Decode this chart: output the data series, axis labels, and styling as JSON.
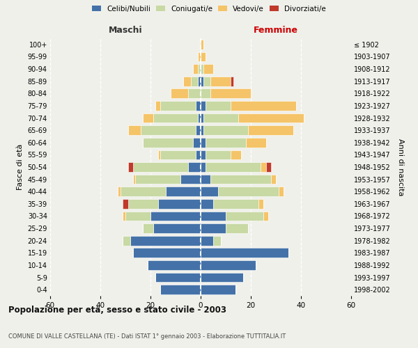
{
  "age_groups": [
    "0-4",
    "5-9",
    "10-14",
    "15-19",
    "20-24",
    "25-29",
    "30-34",
    "35-39",
    "40-44",
    "45-49",
    "50-54",
    "55-59",
    "60-64",
    "65-69",
    "70-74",
    "75-79",
    "80-84",
    "85-89",
    "90-94",
    "95-99",
    "100+"
  ],
  "birth_years": [
    "1998-2002",
    "1993-1997",
    "1988-1992",
    "1983-1987",
    "1978-1982",
    "1973-1977",
    "1968-1972",
    "1963-1967",
    "1958-1962",
    "1953-1957",
    "1948-1952",
    "1943-1947",
    "1938-1942",
    "1933-1937",
    "1928-1932",
    "1923-1927",
    "1918-1922",
    "1913-1917",
    "1908-1912",
    "1903-1907",
    "≤ 1902"
  ],
  "maschi": {
    "celibi": [
      16,
      18,
      21,
      27,
      28,
      19,
      20,
      17,
      14,
      8,
      5,
      2,
      3,
      2,
      1,
      2,
      0,
      1,
      0,
      0,
      0
    ],
    "coniugati": [
      0,
      0,
      0,
      0,
      3,
      4,
      10,
      12,
      18,
      18,
      22,
      14,
      20,
      22,
      18,
      14,
      5,
      3,
      1,
      0,
      0
    ],
    "vedovi": [
      0,
      0,
      0,
      0,
      0,
      0,
      1,
      0,
      1,
      1,
      0,
      1,
      0,
      5,
      4,
      2,
      7,
      3,
      2,
      1,
      0
    ],
    "divorziati": [
      0,
      0,
      0,
      0,
      0,
      0,
      0,
      2,
      0,
      0,
      2,
      0,
      0,
      0,
      0,
      0,
      0,
      0,
      0,
      0,
      0
    ]
  },
  "femmine": {
    "nubili": [
      14,
      17,
      22,
      35,
      5,
      10,
      10,
      5,
      7,
      4,
      2,
      2,
      2,
      1,
      1,
      2,
      0,
      1,
      0,
      0,
      0
    ],
    "coniugate": [
      0,
      0,
      0,
      0,
      3,
      9,
      15,
      18,
      24,
      24,
      22,
      10,
      16,
      18,
      14,
      10,
      4,
      3,
      1,
      0,
      0
    ],
    "vedove": [
      0,
      0,
      0,
      0,
      0,
      0,
      2,
      2,
      2,
      2,
      2,
      4,
      8,
      18,
      26,
      26,
      16,
      8,
      4,
      2,
      1
    ],
    "divorziate": [
      0,
      0,
      0,
      0,
      0,
      0,
      0,
      0,
      0,
      0,
      2,
      0,
      0,
      0,
      0,
      0,
      0,
      1,
      0,
      0,
      0
    ]
  },
  "colors": {
    "celibi": "#4472a8",
    "coniugati": "#c8d9a4",
    "vedovi": "#f5c468",
    "divorziati": "#c0392b"
  },
  "xlim": 60,
  "title": "Popolazione per età, sesso e stato civile - 2003",
  "subtitle": "COMUNE DI VALLE CASTELLANA (TE) - Dati ISTAT 1° gennaio 2003 - Elaborazione TUTTITALIA.IT",
  "ylabel_left": "Fasce di età",
  "ylabel_right": "Anni di nascita",
  "bg_color": "#f0f0eb",
  "maschi_label_color": "#333333",
  "femmine_label_color": "#cc0000"
}
